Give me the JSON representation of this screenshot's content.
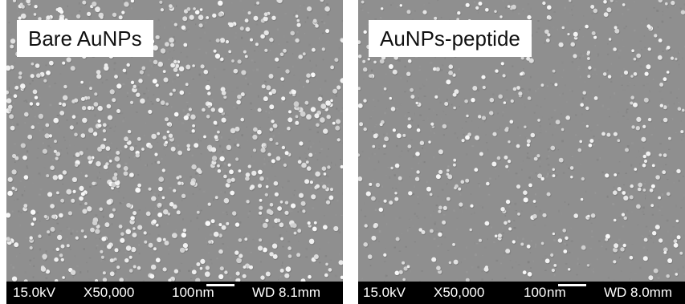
{
  "panels": [
    {
      "label": "Bare AuNPs",
      "particle_density": "high",
      "info": {
        "voltage": "15.0kV",
        "magnification": "X50,000",
        "scale_value": "100",
        "scale_unit": "nm",
        "working_distance": "WD 8.1mm"
      }
    },
    {
      "label": "AuNPs-peptide",
      "particle_density": "medium",
      "info": {
        "voltage": "15.0kV",
        "magnification": "X50,000",
        "scale_value": "100",
        "scale_unit": "nm",
        "working_distance": "WD 8.0mm"
      }
    }
  ],
  "colors": {
    "background": "#8f8f8f",
    "particle": "#e6e6e6",
    "info_bar": "#000000",
    "info_text": "#ffffff"
  }
}
